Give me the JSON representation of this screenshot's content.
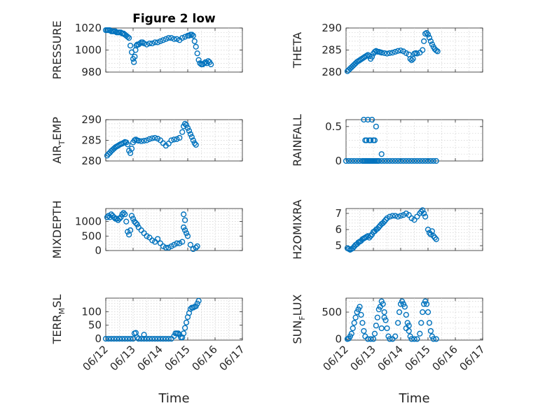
{
  "figure": {
    "title": "Figure 2 low"
  },
  "colors": {
    "marker": "#0072BD",
    "axes": "#262626",
    "grid": "#cfcfcf"
  },
  "chart_data": [
    {
      "id": "pressure",
      "type": "scatter",
      "title": "Figure 2 low",
      "ylabel": "PRESSURE",
      "xlabel": "",
      "xlim": [
        0,
        5
      ],
      "ylim": [
        980,
        1020
      ],
      "yticks": [
        980,
        1000,
        1020
      ],
      "xtick_labels": [],
      "grid": true,
      "x": [
        0,
        0.05,
        0.1,
        0.15,
        0.2,
        0.25,
        0.3,
        0.35,
        0.4,
        0.45,
        0.5,
        0.55,
        0.6,
        0.65,
        0.7,
        0.75,
        0.8,
        0.85,
        0.9,
        0.95,
        1.0,
        1.03,
        1.06,
        1.09,
        1.12,
        1.15,
        1.2,
        1.25,
        1.3,
        1.35,
        1.4,
        1.5,
        1.6,
        1.7,
        1.8,
        1.9,
        2.0,
        2.1,
        2.2,
        2.3,
        2.4,
        2.5,
        2.6,
        2.7,
        2.8,
        2.9,
        3.0,
        3.05,
        3.1,
        3.15,
        3.2,
        3.25,
        3.3,
        3.35,
        3.4,
        3.45,
        3.5,
        3.55,
        3.6,
        3.65,
        3.7,
        3.75,
        3.8,
        3.85
      ],
      "y": [
        1018,
        1018,
        1018,
        1018,
        1017,
        1017,
        1017,
        1017,
        1016,
        1016,
        1016,
        1016,
        1015,
        1015,
        1014,
        1013,
        1012,
        1011,
        1004,
        998,
        992,
        989,
        994,
        1000,
        1004,
        1005,
        1005,
        1006,
        1007,
        1007,
        1006,
        1005,
        1006,
        1006,
        1007,
        1007,
        1008,
        1009,
        1010,
        1011,
        1011,
        1010,
        1010,
        1009,
        1011,
        1012,
        1013,
        1013,
        1014,
        1014,
        1013,
        1008,
        1003,
        997,
        991,
        988,
        987,
        987,
        988,
        989,
        988,
        990,
        989,
        987
      ]
    },
    {
      "id": "theta",
      "type": "scatter",
      "title": "",
      "ylabel": "THETA",
      "xlabel": "",
      "xlim": [
        0,
        5
      ],
      "ylim": [
        280,
        290
      ],
      "yticks": [
        280,
        285,
        290
      ],
      "xtick_labels": [],
      "grid": true,
      "x": [
        0.05,
        0.1,
        0.15,
        0.2,
        0.25,
        0.3,
        0.35,
        0.4,
        0.45,
        0.5,
        0.55,
        0.6,
        0.65,
        0.7,
        0.75,
        0.8,
        0.85,
        0.9,
        0.95,
        1.0,
        1.05,
        1.1,
        1.15,
        1.2,
        1.25,
        1.3,
        1.4,
        1.5,
        1.6,
        1.7,
        1.8,
        1.9,
        2.0,
        2.1,
        2.2,
        2.3,
        2.35,
        2.4,
        2.45,
        2.5,
        2.55,
        2.6,
        2.7,
        2.8,
        2.85,
        2.9,
        2.95,
        3.0,
        3.05,
        3.1,
        3.15,
        3.2,
        3.25,
        3.3,
        3.35
      ],
      "y": [
        280.2,
        280.5,
        280.8,
        281.1,
        281.4,
        281.7,
        282.0,
        282.3,
        282.5,
        282.7,
        282.9,
        283.1,
        283.3,
        283.5,
        283.7,
        283.9,
        283.6,
        283.0,
        283.5,
        284.2,
        284.6,
        284.8,
        284.6,
        284.6,
        284.5,
        284.4,
        284.3,
        284.2,
        284.3,
        284.4,
        284.6,
        284.8,
        284.9,
        284.7,
        284.3,
        284.0,
        283.0,
        282.7,
        283.0,
        284.2,
        284.3,
        284.2,
        284.4,
        285.0,
        287.0,
        288.7,
        288.9,
        288.5,
        287.8,
        287.0,
        286.3,
        285.7,
        285.2,
        284.9,
        284.7
      ]
    },
    {
      "id": "air_temp",
      "type": "scatter",
      "title": "",
      "ylabel": "AIR_TEMP",
      "ylabel_base": "AIR",
      "ylabel_sub": "T",
      "ylabel_rest": "EMP",
      "xlabel": "",
      "xlim": [
        0,
        5
      ],
      "ylim": [
        280,
        290
      ],
      "yticks": [
        280,
        285,
        290
      ],
      "xtick_labels": [],
      "grid": true,
      "x": [
        0.05,
        0.1,
        0.15,
        0.2,
        0.25,
        0.3,
        0.35,
        0.4,
        0.45,
        0.5,
        0.55,
        0.6,
        0.65,
        0.7,
        0.75,
        0.8,
        0.85,
        0.9,
        0.95,
        1.0,
        1.05,
        1.1,
        1.15,
        1.2,
        1.3,
        1.4,
        1.5,
        1.6,
        1.7,
        1.8,
        1.9,
        2.0,
        2.1,
        2.2,
        2.3,
        2.4,
        2.5,
        2.6,
        2.7,
        2.8,
        2.85,
        2.9,
        2.95,
        3.0,
        3.05,
        3.1,
        3.15,
        3.2,
        3.25,
        3.3
      ],
      "y": [
        281.3,
        281.7,
        282.0,
        282.4,
        282.7,
        283.0,
        283.3,
        283.5,
        283.7,
        283.9,
        284.1,
        284.2,
        284.4,
        284.6,
        284.5,
        284.0,
        282.5,
        281.9,
        283.0,
        284.5,
        285.0,
        285.2,
        285.0,
        284.9,
        284.8,
        284.9,
        285.0,
        285.3,
        285.5,
        285.6,
        285.4,
        285.0,
        284.3,
        283.7,
        284.2,
        285.0,
        285.2,
        285.3,
        285.6,
        287.0,
        288.4,
        289.0,
        288.7,
        288.0,
        287.3,
        286.5,
        285.8,
        285.0,
        284.3,
        283.9
      ]
    },
    {
      "id": "rainfall",
      "type": "scatter",
      "title": "",
      "ylabel": "RAINFALL",
      "xlabel": "",
      "xlim": [
        0,
        5
      ],
      "ylim": [
        0,
        0.6
      ],
      "yticks": [
        0,
        0.5
      ],
      "xtick_labels": [],
      "grid": true,
      "x": [
        0,
        0.1,
        0.2,
        0.3,
        0.4,
        0.5,
        0.6,
        0.65,
        0.7,
        0.75,
        0.8,
        0.85,
        0.9,
        0.95,
        1.0,
        1.05,
        1.1,
        1.15,
        1.2,
        1.3,
        1.4,
        1.5,
        1.6,
        1.7,
        1.8,
        1.9,
        2.0,
        2.1,
        2.2,
        2.3,
        2.4,
        2.5,
        2.6,
        2.7,
        2.8,
        2.9,
        3.0,
        3.1,
        3.2,
        3.3,
        0.65,
        0.7,
        0.75,
        0.8,
        0.85,
        0.9,
        0.95,
        1.0,
        1.05,
        1.1,
        1.3
      ],
      "y": [
        0,
        0,
        0,
        0,
        0,
        0,
        0,
        0,
        0,
        0,
        0,
        0,
        0,
        0,
        0,
        0,
        0,
        0,
        0,
        0,
        0,
        0,
        0,
        0,
        0,
        0,
        0,
        0,
        0,
        0,
        0,
        0,
        0,
        0,
        0,
        0,
        0,
        0,
        0,
        0,
        0.6,
        0.3,
        0.3,
        0.6,
        0.3,
        0.3,
        0.6,
        0.3,
        0.3,
        0.5,
        0.1
      ]
    },
    {
      "id": "mixdepth",
      "type": "scatter",
      "title": "",
      "ylabel": "MIXDEPTH",
      "xlabel": "",
      "xlim": [
        0,
        5
      ],
      "ylim": [
        0,
        1450
      ],
      "yticks": [
        0,
        500,
        1000
      ],
      "xtick_labels": [],
      "grid": true,
      "x": [
        0.05,
        0.1,
        0.15,
        0.2,
        0.25,
        0.3,
        0.35,
        0.4,
        0.45,
        0.5,
        0.55,
        0.6,
        0.65,
        0.7,
        0.75,
        0.8,
        0.85,
        0.9,
        0.95,
        1.0,
        1.05,
        1.1,
        1.15,
        1.2,
        1.3,
        1.4,
        1.5,
        1.6,
        1.7,
        1.8,
        1.9,
        2.0,
        2.1,
        2.2,
        2.3,
        2.4,
        2.5,
        2.6,
        2.7,
        2.8,
        2.85,
        2.9,
        2.95,
        3.0,
        3.1,
        3.2,
        3.3,
        3.35,
        2.85,
        2.9
      ],
      "y": [
        1150,
        1200,
        1150,
        1250,
        1200,
        1150,
        1100,
        1100,
        1050,
        1100,
        1150,
        1250,
        1300,
        1250,
        1000,
        650,
        550,
        700,
        1200,
        1100,
        1000,
        950,
        900,
        800,
        700,
        600,
        500,
        450,
        350,
        300,
        400,
        250,
        150,
        100,
        100,
        150,
        200,
        250,
        250,
        300,
        800,
        700,
        600,
        500,
        200,
        50,
        100,
        150,
        1250,
        1050
      ]
    },
    {
      "id": "h2omixra",
      "type": "scatter",
      "title": "",
      "ylabel": "H2OMIXRA",
      "xlabel": "",
      "xlim": [
        0,
        5
      ],
      "ylim": [
        4.7,
        7.3
      ],
      "yticks": [
        5,
        6,
        7
      ],
      "xtick_labels": [],
      "grid": true,
      "x": [
        0.05,
        0.1,
        0.15,
        0.2,
        0.25,
        0.3,
        0.35,
        0.4,
        0.45,
        0.5,
        0.55,
        0.6,
        0.65,
        0.7,
        0.75,
        0.8,
        0.85,
        0.9,
        0.95,
        1.0,
        1.05,
        1.1,
        1.15,
        1.2,
        1.25,
        1.3,
        1.35,
        1.4,
        1.45,
        1.5,
        1.6,
        1.7,
        1.8,
        1.9,
        2.0,
        2.1,
        2.2,
        2.3,
        2.4,
        2.5,
        2.6,
        2.7,
        2.75,
        2.8,
        2.85,
        2.9,
        3.0,
        3.05,
        3.1,
        3.15,
        3.2,
        3.25,
        3.3
      ],
      "y": [
        4.85,
        4.8,
        4.75,
        4.8,
        4.85,
        4.95,
        5.05,
        5.1,
        5.2,
        5.25,
        5.3,
        5.4,
        5.45,
        5.5,
        5.55,
        5.6,
        5.5,
        5.6,
        5.7,
        5.85,
        5.9,
        6.0,
        6.05,
        6.15,
        6.25,
        6.35,
        6.4,
        6.5,
        6.6,
        6.7,
        6.8,
        6.85,
        6.85,
        6.8,
        6.85,
        6.9,
        7.0,
        6.9,
        6.7,
        6.6,
        6.8,
        7.0,
        7.1,
        7.2,
        7.0,
        6.8,
        6.0,
        5.8,
        5.7,
        5.9,
        5.6,
        5.5,
        5.4
      ]
    },
    {
      "id": "terr_msl",
      "type": "scatter",
      "title": "",
      "ylabel": "TERR_MSL",
      "ylabel_base": "TERR",
      "ylabel_sub": "M",
      "ylabel_rest": "SL",
      "xlabel": "Time",
      "xlim": [
        0,
        5
      ],
      "ylim": [
        -5,
        150
      ],
      "yticks": [
        0,
        50,
        100
      ],
      "xtick_labels": [
        "06/12",
        "06/13",
        "06/14",
        "06/15",
        "06/16",
        "06/17"
      ],
      "grid": true,
      "x": [
        0,
        0.1,
        0.2,
        0.3,
        0.4,
        0.5,
        0.6,
        0.7,
        0.8,
        0.9,
        1.0,
        1.05,
        1.1,
        1.15,
        1.2,
        1.3,
        1.4,
        1.5,
        1.6,
        1.7,
        1.8,
        1.9,
        2.0,
        2.1,
        2.2,
        2.3,
        2.4,
        2.5,
        2.55,
        2.6,
        2.65,
        2.7,
        2.75,
        2.8,
        2.85,
        2.9,
        2.95,
        3.0,
        3.05,
        3.1,
        3.15,
        3.2,
        3.25,
        3.3,
        3.35,
        3.4,
        1.4
      ],
      "y": [
        0,
        0,
        0,
        0,
        0,
        0,
        0,
        0,
        0,
        0,
        0,
        20,
        22,
        5,
        0,
        0,
        0,
        0,
        0,
        0,
        0,
        0,
        0,
        0,
        0,
        0,
        0,
        10,
        20,
        20,
        20,
        15,
        5,
        5,
        20,
        40,
        60,
        80,
        95,
        110,
        115,
        115,
        118,
        120,
        130,
        140,
        15
      ]
    },
    {
      "id": "sun_flux",
      "type": "scatter",
      "title": "",
      "ylabel": "SUN_FLUX",
      "ylabel_base": "SUN",
      "ylabel_sub": "F",
      "ylabel_rest": "LUX",
      "xlabel": "Time",
      "xlim": [
        0,
        5
      ],
      "ylim": [
        -20,
        760
      ],
      "yticks": [
        0,
        500
      ],
      "xtick_labels": [
        "06/12",
        "06/13",
        "06/14",
        "06/15",
        "06/16",
        "06/17"
      ],
      "grid": true,
      "x": [
        0.05,
        0.1,
        0.15,
        0.2,
        0.25,
        0.3,
        0.35,
        0.4,
        0.45,
        0.5,
        0.55,
        0.6,
        0.65,
        0.7,
        0.8,
        0.9,
        1.0,
        1.05,
        1.1,
        1.15,
        1.2,
        1.25,
        1.3,
        1.35,
        1.4,
        1.45,
        1.5,
        1.55,
        1.6,
        1.7,
        1.8,
        1.9,
        1.95,
        2.0,
        2.05,
        2.1,
        2.15,
        2.2,
        2.25,
        2.3,
        2.35,
        2.4,
        2.5,
        2.6,
        2.7,
        2.75,
        2.8,
        2.85,
        2.9,
        2.95,
        3.0,
        3.05,
        3.1,
        3.15,
        3.2,
        3.3,
        1.3,
        1.4,
        2.2,
        2.3
      ],
      "y": [
        0,
        10,
        50,
        100,
        200,
        300,
        400,
        500,
        550,
        600,
        450,
        300,
        150,
        50,
        0,
        0,
        0,
        100,
        250,
        400,
        550,
        600,
        700,
        650,
        500,
        350,
        200,
        50,
        0,
        0,
        50,
        300,
        500,
        650,
        700,
        650,
        600,
        450,
        300,
        150,
        50,
        0,
        0,
        0,
        100,
        300,
        500,
        650,
        700,
        650,
        500,
        300,
        150,
        50,
        0,
        0,
        200,
        400,
        200,
        250
      ]
    }
  ]
}
